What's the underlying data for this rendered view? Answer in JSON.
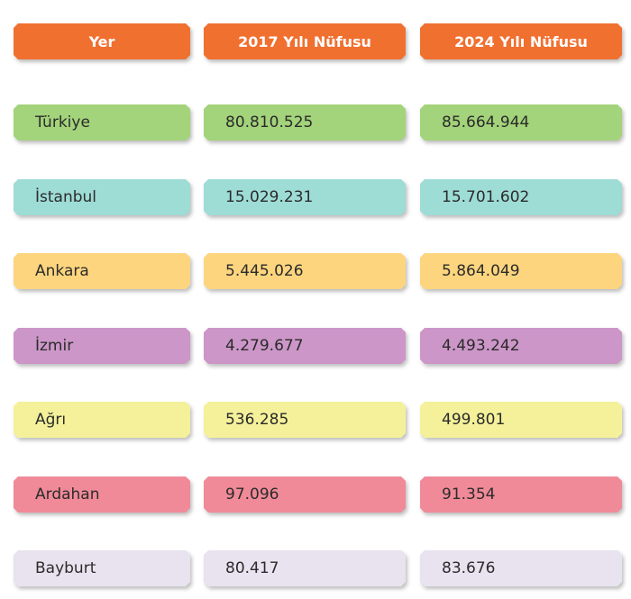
{
  "headers": [
    "Yer",
    "2017 Yılı Nüfusu",
    "2024 Yılı Nüfusu"
  ],
  "header_color": "#f07030",
  "rows": [
    {
      "name": "Türkiye",
      "y2017": "80.810.525",
      "y2024": "85.664.944",
      "color": "#a3d37a"
    },
    {
      "name": "İstanbul",
      "y2017": "15.029.231",
      "y2024": "15.701.602",
      "color": "#9edcd6"
    },
    {
      "name": "Ankara",
      "y2017": "5.445.026",
      "y2024": "5.864.049",
      "color": "#fdd57e"
    },
    {
      "name": "İzmir",
      "y2017": "4.279.677",
      "y2024": "4.493.242",
      "color": "#cc96c8"
    },
    {
      "name": "Ağrı",
      "y2017": "536.285",
      "y2024": "499.801",
      "color": "#f4f19a"
    },
    {
      "name": "Ardahan",
      "y2017": "97.096",
      "y2024": "91.354",
      "color": "#f08a98"
    },
    {
      "name": "Bayburt",
      "y2017": "80.417",
      "y2024": "83.676",
      "color": "#e8e3ef"
    }
  ]
}
